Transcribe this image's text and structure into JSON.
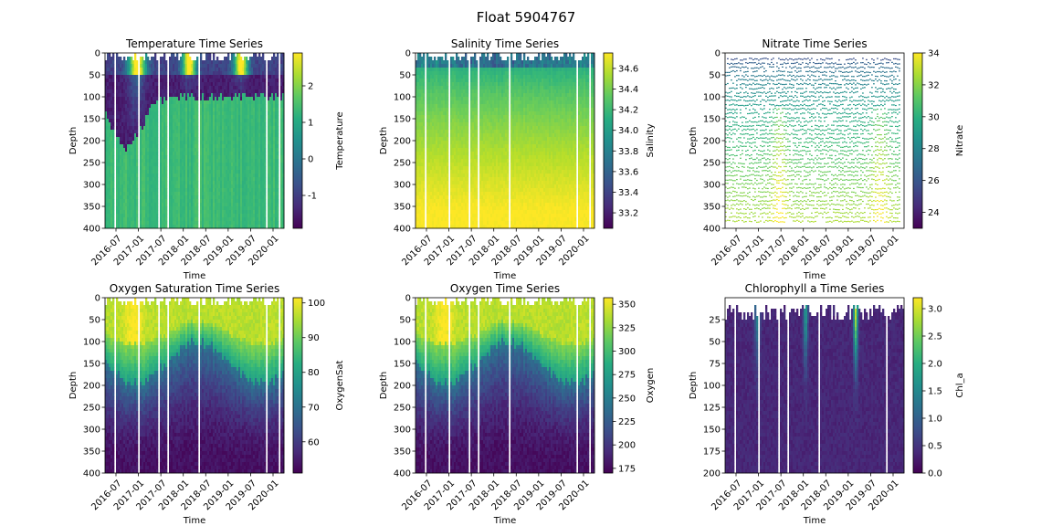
{
  "figure": {
    "title": "Float 5904767"
  },
  "chart_data": [
    {
      "type": "heatmap",
      "title": "Temperature Time Series",
      "xlabel": "Time",
      "ylabel": "Depth",
      "x_ticks": [
        "2016-07",
        "2017-01",
        "2017-07",
        "2018-01",
        "2018-07",
        "2019-01",
        "2019-07",
        "2020-01"
      ],
      "y_ticks": [
        "0",
        "50",
        "100",
        "150",
        "200",
        "250",
        "300",
        "350",
        "400"
      ],
      "ylim": [
        400,
        0
      ],
      "colorbar": {
        "label": "Temperature",
        "ticks": [
          "-1",
          "0",
          "1",
          "2"
        ],
        "range": [
          -1.9,
          2.9
        ]
      },
      "colormap": "viridis",
      "pattern": "cold_mid"
    },
    {
      "type": "heatmap",
      "title": "Salinity Time Series",
      "xlabel": "Time",
      "ylabel": "Depth",
      "x_ticks": [
        "2016-07",
        "2017-01",
        "2017-07",
        "2018-01",
        "2018-07",
        "2019-01",
        "2019-07",
        "2020-01"
      ],
      "y_ticks": [
        "0",
        "50",
        "100",
        "150",
        "200",
        "250",
        "300",
        "350",
        "400"
      ],
      "ylim": [
        400,
        0
      ],
      "colorbar": {
        "label": "Salinity",
        "ticks": [
          "33.2",
          "33.4",
          "33.6",
          "33.8",
          "34.0",
          "34.2",
          "34.4",
          "34.6"
        ],
        "range": [
          33.05,
          34.75
        ]
      },
      "colormap": "viridis",
      "pattern": "increase_depth"
    },
    {
      "type": "heatmap",
      "title": "Nitrate Time Series",
      "xlabel": "Time",
      "ylabel": "Depth",
      "x_ticks": [
        "2016-07",
        "2017-01",
        "2017-07",
        "2018-01",
        "2018-07",
        "2019-01",
        "2019-07",
        "2020-01"
      ],
      "y_ticks": [
        "0",
        "50",
        "100",
        "150",
        "200",
        "250",
        "300",
        "350",
        "400"
      ],
      "ylim": [
        400,
        0
      ],
      "colorbar": {
        "label": "Nitrate",
        "ticks": [
          "24",
          "26",
          "28",
          "30",
          "32",
          "34"
        ],
        "range": [
          23,
          34
        ]
      },
      "colormap": "viridis",
      "pattern": "nitrate_lines"
    },
    {
      "type": "heatmap",
      "title": "Oxygen Saturation Time Series",
      "xlabel": "Time",
      "ylabel": "Depth",
      "x_ticks": [
        "2016-07",
        "2017-01",
        "2017-07",
        "2018-01",
        "2018-07",
        "2019-01",
        "2019-07",
        "2020-01"
      ],
      "y_ticks": [
        "0",
        "50",
        "100",
        "150",
        "200",
        "250",
        "300",
        "350",
        "400"
      ],
      "ylim": [
        400,
        0
      ],
      "colorbar": {
        "label": "OxygenSat",
        "ticks": [
          "60",
          "70",
          "80",
          "90",
          "100"
        ],
        "range": [
          51,
          101.5
        ]
      },
      "colormap": "viridis",
      "pattern": "decrease_depth"
    },
    {
      "type": "heatmap",
      "title": "Oxygen Time Series",
      "xlabel": "Time",
      "ylabel": "Depth",
      "x_ticks": [
        "2016-07",
        "2017-01",
        "2017-07",
        "2018-01",
        "2018-07",
        "2019-01",
        "2019-07",
        "2020-01"
      ],
      "y_ticks": [
        "0",
        "50",
        "100",
        "150",
        "200",
        "250",
        "300",
        "350",
        "400"
      ],
      "ylim": [
        400,
        0
      ],
      "colorbar": {
        "label": "Oxygen",
        "ticks": [
          "175",
          "200",
          "225",
          "250",
          "275",
          "300",
          "325",
          "350"
        ],
        "range": [
          170,
          357
        ]
      },
      "colormap": "viridis",
      "pattern": "decrease_depth"
    },
    {
      "type": "heatmap",
      "title": "Chlorophyll a Time Series",
      "xlabel": "Time",
      "ylabel": "Depth",
      "x_ticks": [
        "2016-07",
        "2017-01",
        "2017-07",
        "2018-01",
        "2018-07",
        "2019-01",
        "2019-07",
        "2020-01"
      ],
      "y_ticks": [
        "25",
        "50",
        "75",
        "100",
        "125",
        "150",
        "175",
        "200"
      ],
      "ylim": [
        200,
        0
      ],
      "colorbar": {
        "label": "Chl_a",
        "ticks": [
          "0.0",
          "0.5",
          "1.0",
          "1.5",
          "2.0",
          "2.5",
          "3.0"
        ],
        "range": [
          0,
          3.2
        ]
      },
      "colormap": "viridis",
      "pattern": "chl_blooms"
    }
  ]
}
